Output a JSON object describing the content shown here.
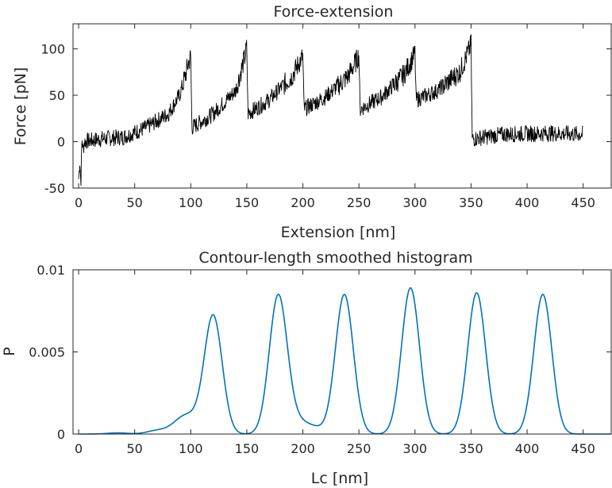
{
  "chart_data": [
    {
      "type": "line",
      "title": "Force-extension",
      "xlabel": "Extension [nm]",
      "ylabel": "Force [pN]",
      "xlim": [
        -5,
        475
      ],
      "ylim": [
        -50,
        127
      ],
      "xticks": [
        0,
        50,
        100,
        150,
        200,
        250,
        300,
        350,
        400,
        450
      ],
      "yticks": [
        -50,
        0,
        50,
        100
      ],
      "grid": false,
      "color": "#000000",
      "series": [
        {
          "x": [
            0,
            1,
            2,
            3,
            4,
            5,
            20,
            40,
            60,
            80,
            90,
            95,
            98,
            100,
            101,
            120,
            140,
            148,
            150,
            151,
            170,
            190,
            198,
            200,
            201,
            220,
            240,
            248,
            250,
            251,
            270,
            290,
            298,
            300,
            301,
            320,
            340,
            348,
            350,
            351,
            380,
            420,
            450
          ],
          "y": [
            -40,
            -20,
            -45,
            5,
            -10,
            0,
            3,
            5,
            15,
            30,
            50,
            70,
            85,
            92,
            15,
            30,
            55,
            90,
            102,
            30,
            45,
            70,
            88,
            92,
            35,
            48,
            70,
            88,
            94,
            35,
            48,
            72,
            90,
            95,
            45,
            55,
            75,
            98,
            105,
            3,
            8,
            9,
            8
          ]
        }
      ]
    },
    {
      "type": "line",
      "title": "Contour-length smoothed histogram",
      "xlabel": "Lc [nm]",
      "ylabel": "P",
      "xlim": [
        -5,
        475
      ],
      "ylim": [
        0,
        0.01
      ],
      "xticks": [
        0,
        50,
        100,
        150,
        200,
        250,
        300,
        350,
        400,
        450
      ],
      "yticks": [
        0,
        0.005,
        0.01
      ],
      "ytick_labels": [
        "0",
        "0.005",
        "0.01"
      ],
      "grid": false,
      "color": "#0072bd",
      "peaks": [
        {
          "x": 120,
          "y": 0.0072
        },
        {
          "x": 178,
          "y": 0.0084
        },
        {
          "x": 237,
          "y": 0.0085
        },
        {
          "x": 296,
          "y": 0.0089
        },
        {
          "x": 355,
          "y": 0.0086
        },
        {
          "x": 414,
          "y": 0.0085
        }
      ],
      "features": [
        {
          "x": 35,
          "y": 0.0001
        },
        {
          "x": 70,
          "y": 0.0003
        },
        {
          "x": 90,
          "y": 0.0008
        },
        {
          "x": 100,
          "y": 0.0011
        },
        {
          "x": 195,
          "y": 0.0009
        },
        {
          "x": 210,
          "y": 0.0005
        }
      ]
    }
  ]
}
